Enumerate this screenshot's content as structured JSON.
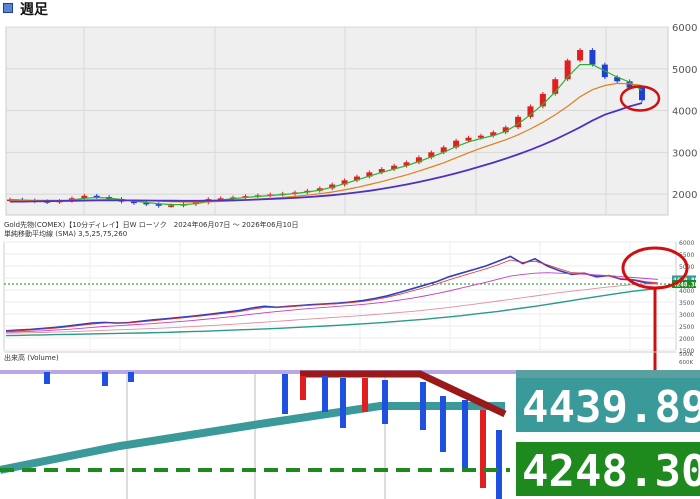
{
  "page": {
    "title": "週足"
  },
  "top_chart": {
    "y_ticks": [
      2000,
      3000,
      4000,
      5000,
      6000
    ],
    "colors": {
      "bg": "#efefef",
      "grid": "#d8d8d8",
      "up": "#e02020",
      "down": "#2040d0",
      "ma_short": "#e03030",
      "ma_mid": "#30b030",
      "ma_mid2": "#e08020",
      "ma_long": "#5030c0",
      "circle": "#d01010"
    }
  },
  "bottom_chart": {
    "header": "Gold先物(COMEX)【10分ディレイ】日W ローソク　2024年06月07日 ～ 2026年06月10日",
    "ma_label": "単純移動平均線 (SMA) 3,5,25,75,260",
    "volume_label": "出来高 (Volume)",
    "y_ticks": [
      "6000",
      "5500",
      "5000",
      "4500",
      "4000",
      "3500",
      "3000",
      "2500",
      "2000",
      "1500"
    ],
    "volume_ticks": [
      "500K",
      "600K"
    ],
    "price_tags": [
      {
        "value": "4439.89",
        "color": "#3a9a9a"
      },
      {
        "value": "4248.30",
        "color": "#1e8a1e"
      }
    ]
  },
  "zoom": {
    "price_tags": [
      {
        "value": "4439.89",
        "color": "#3a9a9a"
      },
      {
        "value": "4248.30",
        "color": "#1e8a1e"
      }
    ]
  },
  "chart_data": [
    {
      "type": "line",
      "title": "",
      "xlabel": "",
      "ylabel": "",
      "ylim": [
        1500,
        6000
      ],
      "grid": true,
      "series": [
        {
          "values": [
            1870,
            1850,
            1830,
            1810,
            1840,
            1900,
            1960,
            1930,
            1880,
            1820,
            1790,
            1760,
            1720,
            1730,
            1760,
            1800,
            1880,
            1900,
            1920,
            1950,
            1970,
            1990,
            2010,
            2040,
            2080,
            2140,
            2230,
            2330,
            2420,
            2520,
            2600,
            2680,
            2760,
            2880,
            3000,
            3120,
            3280,
            3350,
            3400,
            3480,
            3600,
            3850,
            4100,
            4400,
            4750,
            5200,
            5450,
            5100,
            4800,
            4700,
            4550,
            4248
          ]
        },
        {
          "values": [
            1870,
            1860,
            1845,
            1830,
            1830,
            1860,
            1900,
            1920,
            1905,
            1870,
            1830,
            1800,
            1770,
            1750,
            1750,
            1770,
            1820,
            1860,
            1890,
            1920,
            1945,
            1965,
            1990,
            2015,
            2050,
            2095,
            2165,
            2250,
            2340,
            2430,
            2520,
            2600,
            2680,
            2780,
            2890,
            3000,
            3140,
            3250,
            3330,
            3400,
            3500,
            3680,
            3900,
            4150,
            4450,
            4800,
            5100,
            5100,
            4950,
            4800,
            4680,
            4480
          ]
        },
        {
          "values": [
            1850,
            1850,
            1850,
            1850,
            1850,
            1855,
            1860,
            1865,
            1865,
            1860,
            1850,
            1840,
            1830,
            1820,
            1812,
            1810,
            1815,
            1825,
            1840,
            1860,
            1880,
            1900,
            1920,
            1945,
            1975,
            2010,
            2050,
            2100,
            2160,
            2230,
            2300,
            2380,
            2460,
            2550,
            2650,
            2750,
            2870,
            2990,
            3100,
            3200,
            3300,
            3420,
            3560,
            3720,
            3900,
            4100,
            4330,
            4500,
            4600,
            4650,
            4640,
            4600
          ]
        },
        {
          "values": [
            1820,
            1820,
            1825,
            1830,
            1835,
            1840,
            1845,
            1850,
            1852,
            1852,
            1850,
            1848,
            1845,
            1842,
            1840,
            1840,
            1842,
            1846,
            1852,
            1860,
            1870,
            1882,
            1895,
            1910,
            1928,
            1950,
            1975,
            2005,
            2040,
            2080,
            2125,
            2175,
            2230,
            2290,
            2355,
            2425,
            2500,
            2580,
            2665,
            2755,
            2850,
            2950,
            3060,
            3180,
            3310,
            3450,
            3600,
            3760,
            3900,
            4000,
            4100,
            4180
          ]
        }
      ]
    },
    {
      "type": "line",
      "title": "",
      "xlabel": "",
      "ylabel": "",
      "ylim": [
        1500,
        6000
      ],
      "grid": true,
      "series": [
        {
          "values": [
            2300,
            2330,
            2360,
            2400,
            2440,
            2500,
            2560,
            2620,
            2650,
            2620,
            2640,
            2700,
            2760,
            2800,
            2850,
            2900,
            2960,
            3020,
            3080,
            3150,
            3250,
            3320,
            3280,
            3320,
            3360,
            3390,
            3420,
            3450,
            3500,
            3560,
            3650,
            3760,
            3900,
            4050,
            4200,
            4350,
            4550,
            4700,
            4850,
            5000,
            5200,
            5400,
            5100,
            5300,
            5000,
            4800,
            4650,
            4700,
            4550,
            4600,
            4450,
            4420,
            4300,
            4250
          ]
        },
        {
          "values": [
            2280,
            2300,
            2330,
            2370,
            2410,
            2460,
            2520,
            2580,
            2620,
            2620,
            2630,
            2670,
            2720,
            2770,
            2820,
            2870,
            2920,
            2980,
            3040,
            3100,
            3190,
            3270,
            3280,
            3300,
            3340,
            3370,
            3400,
            3430,
            3470,
            3520,
            3600,
            3700,
            3820,
            3960,
            4100,
            4250,
            4420,
            4580,
            4730,
            4880,
            5050,
            5250,
            5150,
            5200,
            5050,
            4880,
            4720,
            4700,
            4600,
            4580,
            4480,
            4440,
            4350,
            4300
          ]
        },
        {
          "values": [
            2250,
            2260,
            2280,
            2300,
            2330,
            2360,
            2400,
            2440,
            2480,
            2510,
            2540,
            2570,
            2600,
            2640,
            2680,
            2720,
            2770,
            2820,
            2870,
            2930,
            2990,
            3050,
            3100,
            3150,
            3200,
            3240,
            3280,
            3320,
            3360,
            3400,
            3450,
            3510,
            3580,
            3660,
            3750,
            3850,
            3960,
            4080,
            4200,
            4320,
            4450,
            4580,
            4650,
            4700,
            4720,
            4700,
            4680,
            4660,
            4630,
            4600,
            4560,
            4520,
            4480,
            4440
          ]
        },
        {
          "values": [
            2200,
            2210,
            2220,
            2230,
            2245,
            2260,
            2280,
            2300,
            2320,
            2340,
            2360,
            2380,
            2400,
            2420,
            2445,
            2470,
            2500,
            2530,
            2560,
            2590,
            2625,
            2660,
            2695,
            2730,
            2765,
            2800,
            2835,
            2870,
            2905,
            2940,
            2980,
            3020,
            3065,
            3110,
            3160,
            3215,
            3275,
            3340,
            3405,
            3470,
            3540,
            3610,
            3680,
            3750,
            3820,
            3890,
            3950,
            4010,
            4070,
            4130,
            4180,
            4220,
            4240,
            4250
          ]
        },
        {
          "values": [
            2100,
            2110,
            2120,
            2130,
            2140,
            2150,
            2160,
            2170,
            2180,
            2190,
            2200,
            2210,
            2220,
            2235,
            2250,
            2265,
            2280,
            2300,
            2320,
            2340,
            2360,
            2380,
            2400,
            2425,
            2450,
            2475,
            2500,
            2530,
            2560,
            2590,
            2620,
            2660,
            2700,
            2740,
            2780,
            2830,
            2880,
            2930,
            2990,
            3050,
            3110,
            3180,
            3250,
            3320,
            3400,
            3480,
            3560,
            3640,
            3720,
            3800,
            3880,
            3950,
            4010,
            4060
          ]
        }
      ]
    }
  ]
}
